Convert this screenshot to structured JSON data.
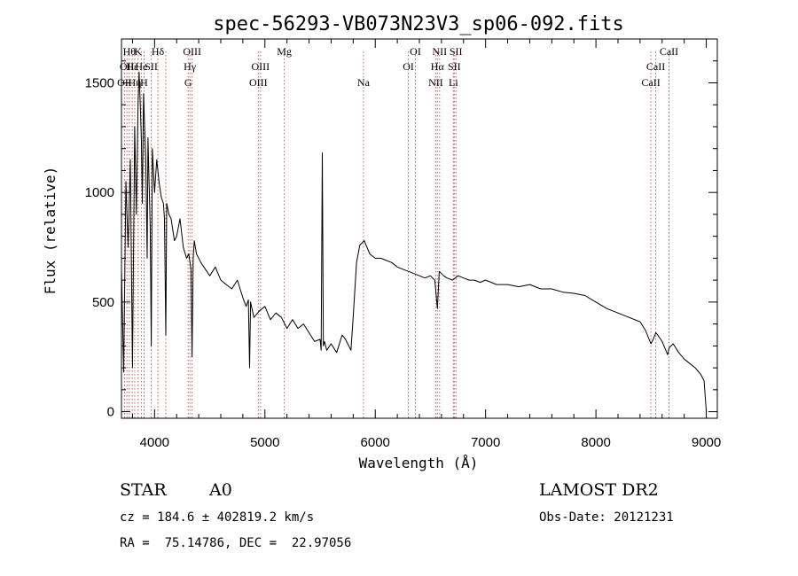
{
  "chart_data": {
    "type": "line",
    "title": "spec-56293-VB073N23V3_sp06-092.fits",
    "xlabel": "Wavelength (Å)",
    "ylabel": "Flux (relative)",
    "xlim": [
      3700,
      9100
    ],
    "ylim": [
      -30,
      1700
    ],
    "x_ticks": [
      4000,
      5000,
      6000,
      7000,
      8000,
      9000
    ],
    "y_ticks": [
      0,
      500,
      1000,
      1500
    ],
    "grid": false,
    "series": [
      {
        "x": [
          3700,
          3720,
          3740,
          3760,
          3780,
          3800,
          3820,
          3835,
          3850,
          3860,
          3870,
          3880,
          3889,
          3900,
          3910,
          3920,
          3933,
          3940,
          3950,
          3960,
          3970,
          3980,
          4000,
          4020,
          4040,
          4060,
          4080,
          4090,
          4102,
          4110,
          4130,
          4150,
          4180,
          4200,
          4230,
          4260,
          4290,
          4310,
          4330,
          4340,
          4350,
          4360,
          4380,
          4420,
          4460,
          4500,
          4550,
          4600,
          4650,
          4700,
          4750,
          4800,
          4830,
          4850,
          4861,
          4870,
          4900,
          4950,
          5000,
          5050,
          5100,
          5150,
          5200,
          5250,
          5300,
          5350,
          5400,
          5450,
          5500,
          5510,
          5520,
          5530,
          5540,
          5560,
          5600,
          5650,
          5700,
          5730,
          5760,
          5780,
          5800,
          5830,
          5860,
          5900,
          5950,
          6000,
          6050,
          6100,
          6150,
          6200,
          6250,
          6300,
          6350,
          6400,
          6450,
          6500,
          6540,
          6563,
          6580,
          6620,
          6650,
          6700,
          6750,
          6800,
          6850,
          6900,
          6950,
          7000,
          7050,
          7100,
          7200,
          7300,
          7400,
          7500,
          7600,
          7700,
          7800,
          7900,
          8000,
          8100,
          8200,
          8300,
          8400,
          8450,
          8498,
          8520,
          8542,
          8560,
          8600,
          8650,
          8662,
          8700,
          8750,
          8800,
          8850,
          8900,
          8950,
          8980,
          9000
        ],
        "y": [
          650,
          180,
          1050,
          750,
          1150,
          200,
          1300,
          900,
          1400,
          1550,
          1400,
          1250,
          950,
          1450,
          1300,
          1150,
          700,
          1250,
          1050,
          850,
          300,
          1200,
          1000,
          1150,
          1050,
          980,
          950,
          880,
          350,
          950,
          900,
          880,
          780,
          800,
          880,
          750,
          700,
          720,
          650,
          250,
          700,
          780,
          720,
          680,
          650,
          620,
          660,
          600,
          580,
          560,
          600,
          520,
          480,
          510,
          200,
          500,
          430,
          460,
          480,
          420,
          450,
          430,
          380,
          420,
          380,
          400,
          360,
          320,
          330,
          280,
          1180,
          300,
          320,
          280,
          310,
          270,
          350,
          330,
          300,
          280,
          430,
          680,
          760,
          780,
          720,
          700,
          700,
          690,
          680,
          660,
          650,
          640,
          630,
          620,
          610,
          620,
          600,
          470,
          640,
          620,
          610,
          600,
          620,
          610,
          600,
          600,
          590,
          600,
          590,
          580,
          580,
          570,
          580,
          560,
          560,
          545,
          540,
          530,
          500,
          470,
          450,
          430,
          410,
          370,
          310,
          330,
          360,
          350,
          320,
          260,
          290,
          310,
          270,
          240,
          220,
          200,
          170,
          140,
          0
        ]
      }
    ],
    "line_markers": [
      {
        "w": 3728,
        "labels": [
          "OII"
        ],
        "tier": 3
      },
      {
        "w": 3750,
        "labels": [
          "OII"
        ],
        "tier": 2
      },
      {
        "w": 3771,
        "labels": [
          "Hθ"
        ],
        "tier": 1
      },
      {
        "w": 3798,
        "labels": [
          "Hε"
        ],
        "tier": 2
      },
      {
        "w": 3820,
        "labels": [
          "Hη"
        ],
        "tier": 3
      },
      {
        "w": 3850,
        "labels": [
          "K"
        ],
        "tier": 1
      },
      {
        "w": 3880,
        "labels": [
          "He"
        ],
        "tier": 2
      },
      {
        "w": 3905,
        "labels": [
          "H"
        ],
        "tier": 3
      },
      {
        "w": 3970,
        "labels": [
          "SII"
        ],
        "tier": 2
      },
      {
        "w": 4030,
        "labels": [
          "Hδ"
        ],
        "tier": 1
      },
      {
        "w": 4102,
        "labels": [],
        "tier": 0
      },
      {
        "w": 4304,
        "labels": [
          "G"
        ],
        "tier": 3
      },
      {
        "w": 4320,
        "labels": [
          "Hγ"
        ],
        "tier": 2
      },
      {
        "w": 4340,
        "labels": [
          "OIII"
        ],
        "tier": 1
      },
      {
        "w": 4940,
        "labels": [
          "OIII"
        ],
        "tier": 3
      },
      {
        "w": 4960,
        "labels": [
          "OIII"
        ],
        "tier": 2
      },
      {
        "w": 5175,
        "labels": [
          "Mg"
        ],
        "tier": 1
      },
      {
        "w": 5893,
        "labels": [
          "Na"
        ],
        "tier": 3
      },
      {
        "w": 6300,
        "labels": [
          "OI"
        ],
        "tier": 2
      },
      {
        "w": 6364,
        "labels": [
          "OI"
        ],
        "tier": 1
      },
      {
        "w": 6548,
        "labels": [
          "NII"
        ],
        "tier": 3
      },
      {
        "w": 6563,
        "labels": [
          "Hα"
        ],
        "tier": 2
      },
      {
        "w": 6583,
        "labels": [
          "NII"
        ],
        "tier": 1
      },
      {
        "w": 6708,
        "labels": [
          "Li"
        ],
        "tier": 3
      },
      {
        "w": 6716,
        "labels": [
          "SII"
        ],
        "tier": 2
      },
      {
        "w": 6731,
        "labels": [
          "SII"
        ],
        "tier": 1
      },
      {
        "w": 8498,
        "labels": [
          "CaII"
        ],
        "tier": 3
      },
      {
        "w": 8542,
        "labels": [
          "CaII"
        ],
        "tier": 2
      },
      {
        "w": 8662,
        "labels": [
          "CaII"
        ],
        "tier": 1
      }
    ]
  },
  "info": {
    "object_class": "STAR",
    "subclass": "A0",
    "survey": "LAMOST DR2",
    "cz": "cz = 184.6 ± 402819.2 km/s",
    "obs_date": "Obs-Date: 20121231",
    "coords": "RA =  75.14786, DEC =  22.97056"
  }
}
